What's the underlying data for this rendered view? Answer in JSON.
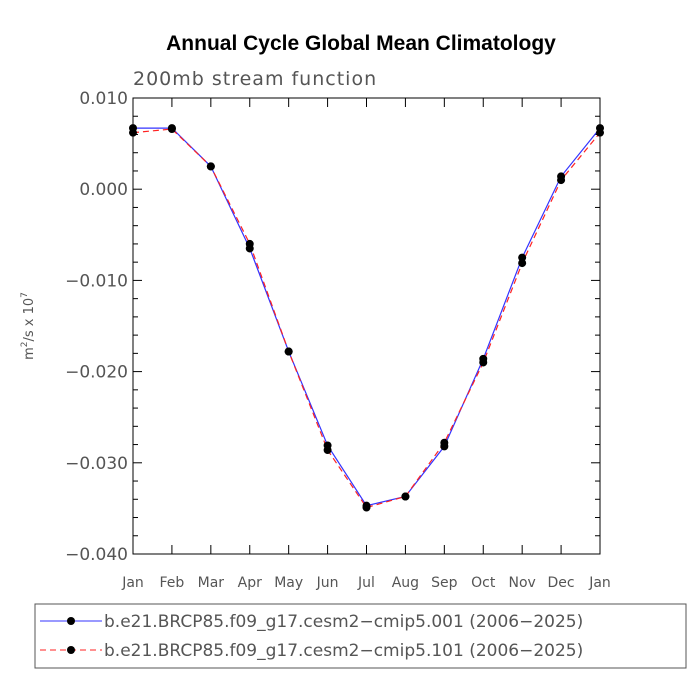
{
  "chart_data": {
    "type": "line",
    "title": "Annual Cycle Global Mean Climatology",
    "subtitle": "200mb stream function",
    "xlabel": "",
    "ylabel": {
      "base": "m",
      "sup1": "2",
      "mid": "/s x 10",
      "sup2": "7"
    },
    "ylim": [
      -0.04,
      0.01
    ],
    "yticks": [
      {
        "value": 0.01,
        "label": "0.010"
      },
      {
        "value": 0.0,
        "label": "0.000"
      },
      {
        "value": -0.01,
        "label": "−0.010"
      },
      {
        "value": -0.02,
        "label": "−0.020"
      },
      {
        "value": -0.03,
        "label": "−0.030"
      },
      {
        "value": -0.04,
        "label": "−0.040"
      }
    ],
    "yminor_step": 0.002,
    "categories": [
      "Jan",
      "Feb",
      "Mar",
      "Apr",
      "May",
      "Jun",
      "Jul",
      "Aug",
      "Sep",
      "Oct",
      "Nov",
      "Dec",
      "Jan"
    ],
    "series": [
      {
        "name": "b.e21.BRCP85.f09_g17.cesm2−cmip5.001 (2006−2025)",
        "color": "#3333ff",
        "style": "solid",
        "values": [
          0.0067,
          0.0067,
          0.0025,
          -0.0065,
          -0.0178,
          -0.0281,
          -0.0347,
          -0.0337,
          -0.0282,
          -0.0186,
          -0.0075,
          0.0014,
          0.0067
        ]
      },
      {
        "name": "b.e21.BRCP85.f09_g17.cesm2−cmip5.101 (2006−2025)",
        "color": "#ff2222",
        "style": "dashed",
        "values": [
          0.0062,
          0.0066,
          0.0025,
          -0.006,
          -0.0178,
          -0.0286,
          -0.0349,
          -0.0337,
          -0.0278,
          -0.019,
          -0.0081,
          0.001,
          0.0062
        ]
      }
    ],
    "marker_color": "#000000",
    "legend_position": "bottom"
  }
}
